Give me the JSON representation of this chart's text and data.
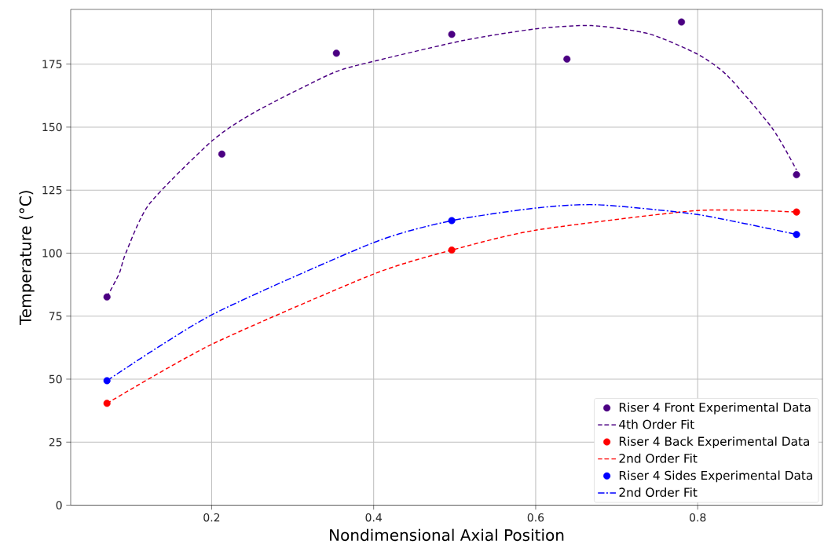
{
  "chart_data": {
    "type": "scatter",
    "xlabel": "Nondimensional Axial Position",
    "ylabel": "Temperature (°C)",
    "xlim": [
      0.026,
      0.954
    ],
    "ylim": [
      0,
      196.7
    ],
    "xticks": [
      0.2,
      0.4,
      0.6,
      0.8
    ],
    "yticks": [
      0,
      25,
      50,
      75,
      100,
      125,
      150,
      175
    ],
    "grid": true,
    "legend": "bottom right",
    "series": [
      {
        "name": "Riser 4 Front Experimental Data",
        "color": "#4b0082",
        "marker": "circle",
        "x": [
          0.0708,
          0.2126,
          0.354,
          0.4964,
          0.6386,
          0.78,
          0.922
        ],
        "values": [
          82.6,
          139.3,
          179.3,
          186.8,
          177.0,
          191.7,
          131.1
        ]
      },
      {
        "type": "line",
        "name": "4th Order Fit",
        "color": "#4b0082",
        "line_style": "dashed",
        "x": [
          0.0708,
          0.086,
          0.094,
          0.123,
          0.2,
          0.2524,
          0.349,
          0.4,
          0.511,
          0.6,
          0.669,
          0.74,
          0.8,
          0.837,
          0.892,
          0.922
        ],
        "values": [
          82.6,
          92,
          100,
          119.5,
          144.4,
          155.8,
          171.4,
          176.1,
          184.4,
          189.0,
          190.3,
          187.0,
          178.9,
          170.3,
          149.6,
          133
        ]
      },
      {
        "name": "Riser 4  Back Experimental Data",
        "color": "#ff0000",
        "marker": "circle",
        "x": [
          0.0708,
          0.4964,
          0.922
        ],
        "values": [
          40.4,
          101.2,
          116.3
        ]
      },
      {
        "type": "line",
        "name": "2nd Order Fit",
        "color": "#ff0000",
        "line_style": "dashed",
        "x": [
          0.0708,
          0.2,
          0.4,
          0.4964,
          0.6,
          0.8,
          0.922
        ],
        "values": [
          40.4,
          63.8,
          91.7,
          101.2,
          109.1,
          116.9,
          116.3
        ]
      },
      {
        "name": "Riser 4  Sides Experimental Data",
        "color": "#0000ff",
        "marker": "circle",
        "x": [
          0.0708,
          0.4964,
          0.922
        ],
        "values": [
          49.4,
          112.9,
          107.4
        ]
      },
      {
        "type": "line",
        "name": "2nd Order Fit",
        "color": "#0000ff",
        "line_style": "dashdot",
        "x": [
          0.0708,
          0.2,
          0.4,
          0.4964,
          0.6,
          0.676,
          0.8,
          0.922
        ],
        "values": [
          49.4,
          75.5,
          104.2,
          112.9,
          117.9,
          119.2,
          115.3,
          107.4
        ]
      }
    ]
  }
}
